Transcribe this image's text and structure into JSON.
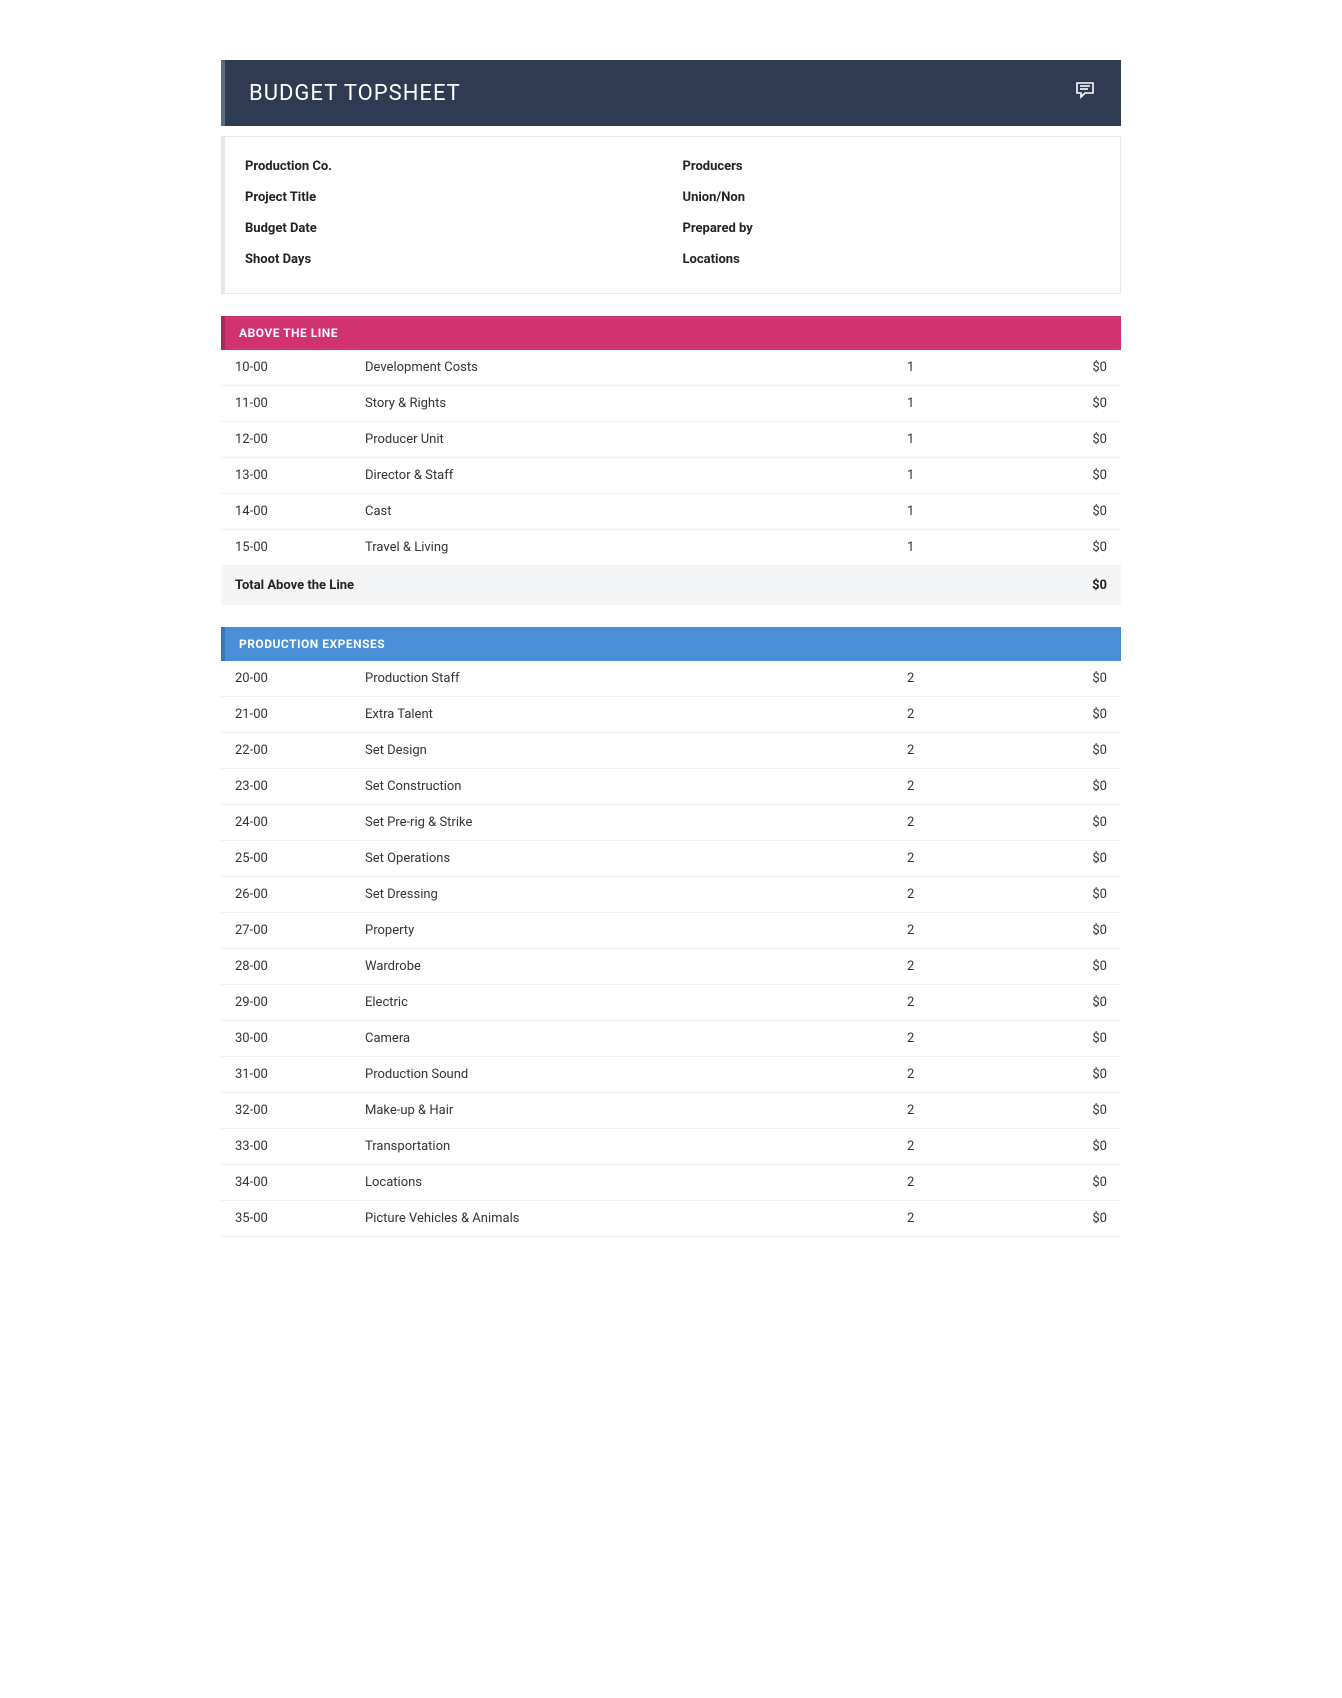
{
  "title": "BUDGET TOPSHEET",
  "colors": {
    "header_bg": "#2f3b52",
    "header_accent": "#5a6b8a",
    "above_line_bg": "#d0336f",
    "above_line_accent": "#a8285a",
    "production_bg": "#4a90d9",
    "production_accent": "#3b77b5",
    "border": "#e6e8eb",
    "row_divider": "#eef0f2",
    "total_bg": "#f4f5f6",
    "text": "#333333",
    "white": "#ffffff"
  },
  "info_fields": {
    "left": [
      "Production Co.",
      "Project Title",
      "Budget Date",
      "Shoot Days"
    ],
    "right": [
      "Producers",
      "Union/Non",
      "Prepared by",
      "Locations"
    ]
  },
  "sections": [
    {
      "key": "above",
      "title": "ABOVE THE LINE",
      "bg_color": "#d0336f",
      "accent_color": "#a8285a",
      "rows": [
        {
          "code": "10-00",
          "desc": "Development Costs",
          "page": "1",
          "amount": "$0"
        },
        {
          "code": "11-00",
          "desc": "Story & Rights",
          "page": "1",
          "amount": "$0"
        },
        {
          "code": "12-00",
          "desc": "Producer Unit",
          "page": "1",
          "amount": "$0"
        },
        {
          "code": "13-00",
          "desc": "Director & Staff",
          "page": "1",
          "amount": "$0"
        },
        {
          "code": "14-00",
          "desc": "Cast",
          "page": "1",
          "amount": "$0"
        },
        {
          "code": "15-00",
          "desc": "Travel & Living",
          "page": "1",
          "amount": "$0"
        }
      ],
      "total_label": "Total Above the Line",
      "total_amount": "$0"
    },
    {
      "key": "production",
      "title": "PRODUCTION EXPENSES",
      "bg_color": "#4a90d9",
      "accent_color": "#3b77b5",
      "rows": [
        {
          "code": "20-00",
          "desc": "Production Staff",
          "page": "2",
          "amount": "$0"
        },
        {
          "code": "21-00",
          "desc": "Extra Talent",
          "page": "2",
          "amount": "$0"
        },
        {
          "code": "22-00",
          "desc": "Set Design",
          "page": "2",
          "amount": "$0"
        },
        {
          "code": "23-00",
          "desc": "Set Construction",
          "page": "2",
          "amount": "$0"
        },
        {
          "code": "24-00",
          "desc": "Set Pre-rig & Strike",
          "page": "2",
          "amount": "$0"
        },
        {
          "code": "25-00",
          "desc": "Set Operations",
          "page": "2",
          "amount": "$0"
        },
        {
          "code": "26-00",
          "desc": "Set Dressing",
          "page": "2",
          "amount": "$0"
        },
        {
          "code": "27-00",
          "desc": "Property",
          "page": "2",
          "amount": "$0"
        },
        {
          "code": "28-00",
          "desc": "Wardrobe",
          "page": "2",
          "amount": "$0"
        },
        {
          "code": "29-00",
          "desc": "Electric",
          "page": "2",
          "amount": "$0"
        },
        {
          "code": "30-00",
          "desc": "Camera",
          "page": "2",
          "amount": "$0"
        },
        {
          "code": "31-00",
          "desc": "Production Sound",
          "page": "2",
          "amount": "$0"
        },
        {
          "code": "32-00",
          "desc": "Make-up & Hair",
          "page": "2",
          "amount": "$0"
        },
        {
          "code": "33-00",
          "desc": "Transportation",
          "page": "2",
          "amount": "$0"
        },
        {
          "code": "34-00",
          "desc": "Locations",
          "page": "2",
          "amount": "$0"
        },
        {
          "code": "35-00",
          "desc": "Picture Vehicles & Animals",
          "page": "2",
          "amount": "$0"
        }
      ]
    }
  ]
}
